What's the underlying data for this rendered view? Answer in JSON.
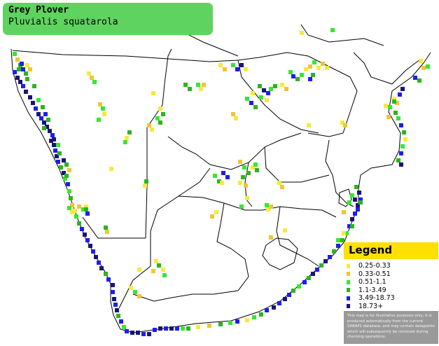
{
  "species": {
    "common_name": "Grey Plover",
    "scientific_name": "Pluvialis squatarola"
  },
  "legend": {
    "title": "Legend",
    "items": [
      {
        "label": "0.25-0.33",
        "color": "#f5ea3c"
      },
      {
        "label": "0.33-0.51",
        "color": "#f2c437"
      },
      {
        "label": "0.51-1.1",
        "color": "#35e830"
      },
      {
        "label": "1.1-3.49",
        "color": "#2db41e"
      },
      {
        "label": "3.49-18.73",
        "color": "#1c1ff0"
      },
      {
        "label": "18.73+",
        "color": "#1a1478"
      }
    ],
    "note": "This map is for illustrative purposes only; it is produced automatically from the current SABAP2 database, and may contain datapoints which will subsequently be removed during checking operations."
  },
  "colors": {
    "title_box": "#5fd35f",
    "legend_header": "#ffe000",
    "legend_note_bg": "#9a9a9a",
    "border_lines": "#000000"
  }
}
